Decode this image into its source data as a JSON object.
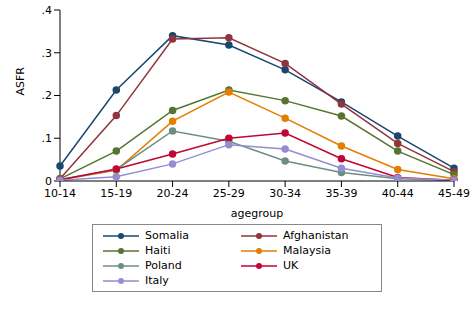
{
  "chart_data": {
    "type": "line",
    "x_label": "agegroup",
    "y_label": "ASFR",
    "categories": [
      "10-14",
      "15-19",
      "20-24",
      "25-29",
      "30-34",
      "35-39",
      "40-44",
      "45-49"
    ],
    "ylim": [
      0,
      0.4
    ],
    "yticks": [
      0,
      {
        "value": 0.1,
        "label": ".1"
      },
      {
        "value": 0.2,
        "label": ".2"
      },
      {
        "value": 0.3,
        "label": ".3"
      },
      {
        "value": 0.4,
        "label": ".4"
      }
    ],
    "grid": false,
    "legend": "bottom",
    "marker": "circle",
    "series": [
      {
        "name": "Somalia",
        "color": "#1a476f",
        "values": [
          0.035,
          0.213,
          0.34,
          0.318,
          0.26,
          0.185,
          0.105,
          0.03
        ]
      },
      {
        "name": "Afghanistan",
        "color": "#90353b",
        "values": [
          0.005,
          0.153,
          0.332,
          0.335,
          0.275,
          0.18,
          0.088,
          0.022
        ]
      },
      {
        "name": "Haiti",
        "color": "#55752f",
        "values": [
          0.005,
          0.07,
          0.165,
          0.213,
          0.188,
          0.152,
          0.07,
          0.015
        ]
      },
      {
        "name": "Malaysia",
        "color": "#e37e00",
        "values": [
          0.003,
          0.025,
          0.14,
          0.208,
          0.147,
          0.082,
          0.027,
          0.005
        ]
      },
      {
        "name": "Poland",
        "color": "#6e8e84",
        "values": [
          0.003,
          0.027,
          0.117,
          0.093,
          0.047,
          0.02,
          0.005,
          0.002
        ]
      },
      {
        "name": "UK",
        "color": "#c10534",
        "values": [
          0.003,
          0.028,
          0.063,
          0.1,
          0.112,
          0.052,
          0.008,
          0.002
        ]
      },
      {
        "name": "Italy",
        "color": "#938dd2",
        "values": [
          0.002,
          0.01,
          0.04,
          0.085,
          0.075,
          0.03,
          0.007,
          0.002
        ]
      }
    ]
  }
}
